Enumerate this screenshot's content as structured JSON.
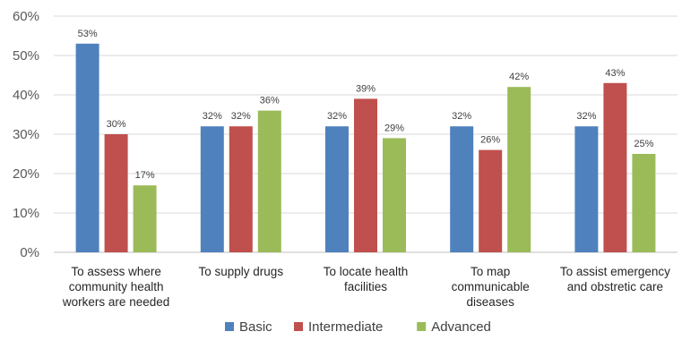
{
  "chart_data": {
    "type": "bar",
    "categories": [
      [
        "To assess where",
        "community health",
        "workers are needed"
      ],
      [
        "To supply drugs"
      ],
      [
        "To locate health",
        "facilities"
      ],
      [
        "To map",
        "communicable",
        "diseases"
      ],
      [
        "To assist emergency",
        "and obstretic care"
      ]
    ],
    "series": [
      {
        "name": "Basic",
        "color": "#4f81bd",
        "values": [
          53,
          32,
          32,
          32,
          32
        ]
      },
      {
        "name": "Intermediate",
        "color": "#c0504d",
        "values": [
          30,
          32,
          39,
          26,
          43
        ]
      },
      {
        "name": "Advanced",
        "color": "#9bbb59",
        "values": [
          17,
          36,
          29,
          42,
          25
        ]
      }
    ],
    "ylim": [
      0,
      60
    ],
    "yticks": [
      "0%",
      "10%",
      "20%",
      "30%",
      "40%",
      "50%",
      "60%"
    ],
    "value_suffix": "%",
    "grid": true,
    "legend_position": "bottom"
  }
}
